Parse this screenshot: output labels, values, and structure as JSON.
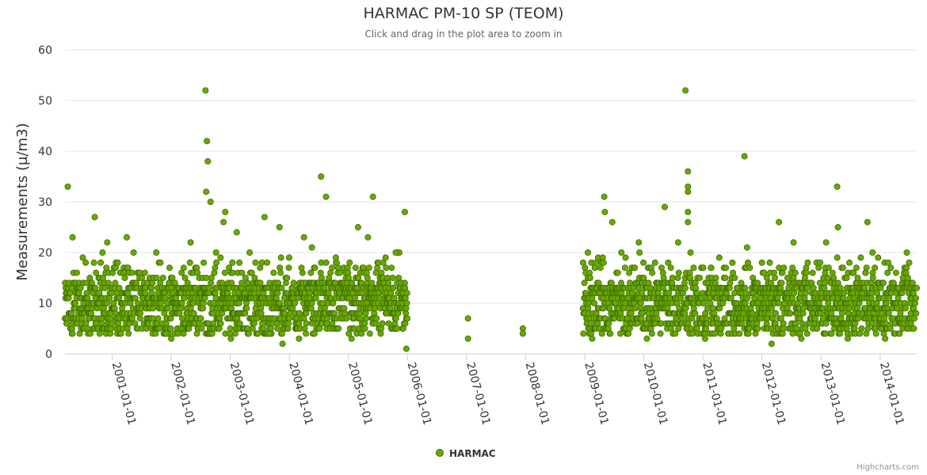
{
  "chart_data": {
    "type": "scatter",
    "title": "HARMAC PM-10 SP (TEOM)",
    "subtitle": "Click and drag in the plot area to zoom in",
    "ylabel": "Measurements (µ/m3)",
    "xlabel": "",
    "x_type": "datetime",
    "xlim": [
      "2000-03-15",
      "2014-08-15"
    ],
    "ylim": [
      0,
      60
    ],
    "y_ticks": [
      0,
      10,
      20,
      30,
      40,
      50,
      60
    ],
    "x_ticks": [
      "2001-01-01",
      "2002-01-01",
      "2003-01-01",
      "2004-01-01",
      "2005-01-01",
      "2006-01-01",
      "2007-01-01",
      "2008-01-01",
      "2009-01-01",
      "2010-01-01",
      "2011-01-01",
      "2012-01-01",
      "2013-01-01",
      "2014-01-01"
    ],
    "grid": true,
    "legend_position": "bottom-center",
    "series": [
      {
        "name": "HARMAC",
        "color": "#6aa800",
        "marker_stroke": "#3d6b00",
        "points": [
          [
            "2000-04-01",
            33
          ],
          [
            "2000-09-15",
            27
          ],
          [
            "2002-08-01",
            52
          ],
          [
            "2002-08-10",
            42
          ],
          [
            "2002-08-15",
            38
          ],
          [
            "2002-08-05",
            32
          ],
          [
            "2002-09-01",
            30
          ],
          [
            "2002-12-01",
            28
          ],
          [
            "2003-08-01",
            27
          ],
          [
            "2004-07-15",
            35
          ],
          [
            "2004-08-15",
            31
          ],
          [
            "2005-06-01",
            31
          ],
          [
            "2005-12-15",
            28
          ],
          [
            "2000-05-01",
            23
          ],
          [
            "2001-04-01",
            23
          ],
          [
            "2002-05-01",
            22
          ],
          [
            "2003-11-01",
            25
          ],
          [
            "2004-04-01",
            23
          ],
          [
            "2005-03-01",
            25
          ],
          [
            "2005-05-01",
            23
          ],
          [
            "2004-05-20",
            21
          ],
          [
            "2001-10-01",
            20
          ],
          [
            "2000-12-01",
            22
          ],
          [
            "2003-05-01",
            20
          ],
          [
            "2003-02-10",
            24
          ],
          [
            "2002-11-20",
            26
          ],
          [
            "2004-10-15",
            19
          ],
          [
            "2005-10-20",
            20
          ],
          [
            "2003-01-05",
            3
          ],
          [
            "2003-09-01",
            4
          ],
          [
            "2003-11-20",
            2
          ],
          [
            "2005-12-25",
            1
          ],
          [
            "2005-01-20",
            3
          ],
          [
            "2002-01-01",
            3
          ],
          [
            "2001-12-01",
            4
          ],
          [
            "2004-03-01",
            3
          ],
          [
            "2007-01-10",
            7
          ],
          [
            "2007-01-10",
            3
          ],
          [
            "2007-12-15",
            5
          ],
          [
            "2007-12-15",
            4
          ],
          [
            "2009-05-01",
            31
          ],
          [
            "2009-05-05",
            28
          ],
          [
            "2009-06-20",
            26
          ],
          [
            "2010-05-10",
            29
          ],
          [
            "2010-09-15",
            52
          ],
          [
            "2010-10-01",
            36
          ],
          [
            "2010-10-01",
            33
          ],
          [
            "2010-10-01",
            32
          ],
          [
            "2010-10-01",
            28
          ],
          [
            "2010-10-01",
            26
          ],
          [
            "2011-09-15",
            39
          ],
          [
            "2012-04-15",
            26
          ],
          [
            "2013-04-10",
            33
          ],
          [
            "2013-04-15",
            25
          ],
          [
            "2013-10-15",
            26
          ],
          [
            "2009-01-20",
            20
          ],
          [
            "2009-12-01",
            22
          ],
          [
            "2010-08-01",
            22
          ],
          [
            "2011-10-01",
            21
          ],
          [
            "2012-07-15",
            22
          ],
          [
            "2013-02-01",
            22
          ],
          [
            "2014-06-15",
            20
          ],
          [
            "2013-11-15",
            20
          ],
          [
            "2012-03-01",
            2
          ],
          [
            "2011-01-15",
            3
          ],
          [
            "2012-09-01",
            3
          ],
          [
            "2013-06-15",
            3
          ],
          [
            "2014-02-01",
            3
          ],
          [
            "2009-02-15",
            3
          ],
          [
            "2010-01-20",
            3
          ]
        ]
      }
    ]
  },
  "legend": {
    "label": "HARMAC"
  },
  "credits": "Highcharts.com"
}
